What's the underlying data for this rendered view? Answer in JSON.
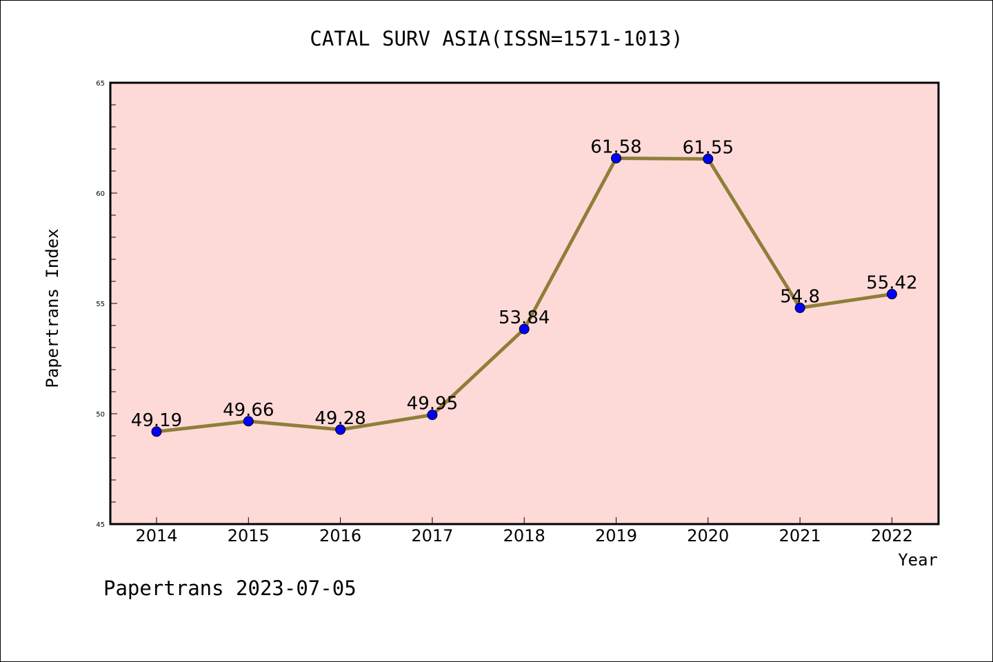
{
  "chart_data": {
    "type": "line",
    "title": "CATAL SURV ASIA(ISSN=1571-1013)",
    "xlabel": "Year",
    "ylabel": "Papertrans Index",
    "categories": [
      "2014",
      "2015",
      "2016",
      "2017",
      "2018",
      "2019",
      "2020",
      "2021",
      "2022"
    ],
    "values": [
      49.19,
      49.66,
      49.28,
      49.95,
      53.84,
      61.58,
      61.55,
      54.8,
      55.42
    ],
    "data_labels": [
      "49.19",
      "49.66",
      "49.28",
      "49.95",
      "53.84",
      "61.58",
      "61.55",
      "54.8",
      "55.42"
    ],
    "ylim": [
      45,
      65
    ],
    "yticks": [
      "45",
      "50",
      "55",
      "60",
      "65"
    ],
    "grid": false,
    "colors": {
      "plot_background": "#fddad8",
      "line": "#8f7e3a",
      "marker": "#0000ff"
    }
  },
  "footer": "Papertrans 2023-07-05"
}
